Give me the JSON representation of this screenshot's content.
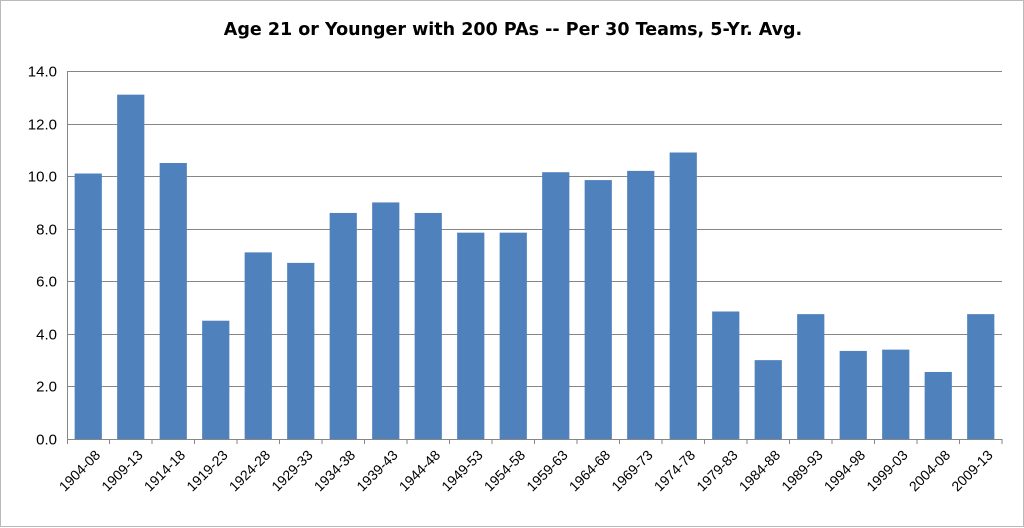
{
  "chart_data": {
    "type": "bar",
    "title": "Age 21 or Younger with 200 PAs -- Per 30 Teams, 5-Yr. Avg.",
    "xlabel": "",
    "ylabel": "",
    "ylim": [
      0,
      14
    ],
    "ytick_step": 2,
    "ytick_decimals": 1,
    "grid": true,
    "legend": "none",
    "bar_color": "#4f81bd",
    "grid_color": "#868686",
    "categories": [
      "1904-08",
      "1909-13",
      "1914-18",
      "1919-23",
      "1924-28",
      "1929-33",
      "1934-38",
      "1939-43",
      "1944-48",
      "1949-53",
      "1954-58",
      "1959-63",
      "1964-68",
      "1969-73",
      "1974-78",
      "1979-83",
      "1984-88",
      "1989-93",
      "1994-98",
      "1999-03",
      "2004-08",
      "2009-13"
    ],
    "values": [
      10.1,
      13.1,
      10.5,
      4.5,
      7.1,
      6.7,
      8.6,
      9.0,
      8.6,
      7.85,
      7.85,
      10.15,
      9.85,
      10.2,
      10.9,
      4.85,
      3.0,
      4.75,
      3.35,
      3.4,
      2.55,
      4.75
    ]
  }
}
